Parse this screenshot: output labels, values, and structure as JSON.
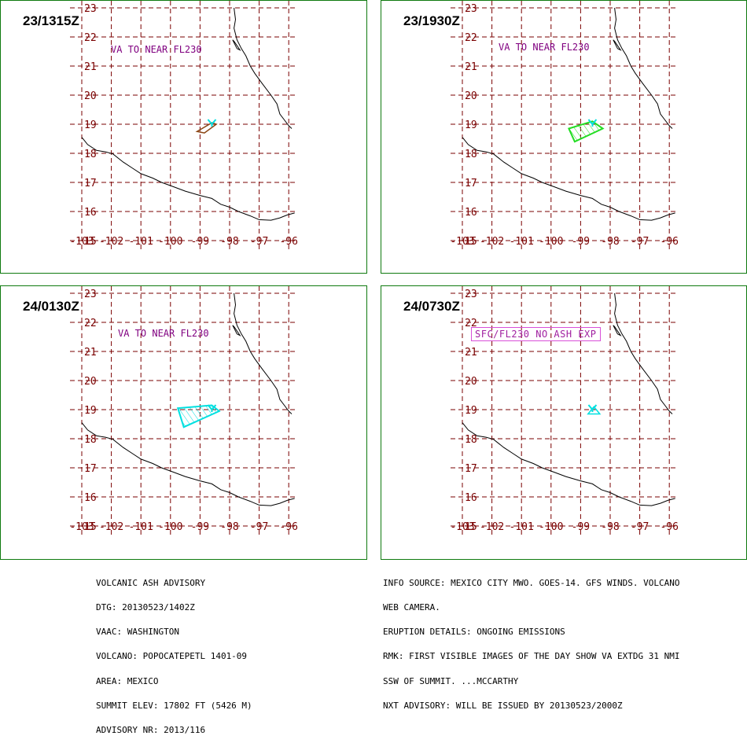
{
  "map": {
    "lon_ticks": [
      -103,
      -102,
      -101,
      -100,
      -99,
      -98,
      -97,
      -96
    ],
    "lon_tick_labels": [
      "-103",
      "-102",
      "-101",
      "-100",
      "-99",
      "-98",
      "-97",
      "-96"
    ],
    "lat_ticks": [
      23,
      22,
      21,
      20,
      19,
      18,
      17,
      16,
      15
    ],
    "lat_tick_labels": [
      "23",
      "22",
      "21",
      "20",
      "19",
      "18",
      "17",
      "16",
      "15"
    ],
    "grid_color": "#7a0000",
    "coast_color": "#000000",
    "volcano": {
      "lon": -98.6,
      "lat": 19.0,
      "color": "#00e0e0"
    }
  },
  "panels": [
    {
      "time": "23/1315Z",
      "note": "VA TO NEAR FL230",
      "note_style": "plain",
      "ash_color": "#8b4513",
      "ash_polygon": [
        [
          -98.6,
          19.05
        ],
        [
          -99.1,
          18.75
        ],
        [
          -98.85,
          18.7
        ],
        [
          -98.45,
          19.0
        ]
      ],
      "hatched": false
    },
    {
      "time": "23/1930Z",
      "note": "VA TO NEAR FL230",
      "note_style": "plain",
      "ash_color": "#22dd22",
      "ash_polygon": [
        [
          -98.6,
          19.1
        ],
        [
          -99.4,
          18.85
        ],
        [
          -99.2,
          18.4
        ],
        [
          -98.25,
          18.85
        ]
      ],
      "hatched": true
    },
    {
      "time": "24/0130Z",
      "note": "VA TO NEAR FL230",
      "note_style": "plain",
      "ash_color": "#00e0e0",
      "ash_polygon": [
        [
          -98.6,
          19.15
        ],
        [
          -99.75,
          19.05
        ],
        [
          -99.55,
          18.4
        ],
        [
          -98.35,
          18.95
        ]
      ],
      "hatched": true
    },
    {
      "time": "24/0730Z",
      "note": "SFC/FL230 NO ASH EXP",
      "note_style": "boxed",
      "ash_color": "#00e0e0",
      "ash_polygon": [
        [
          -98.55,
          19.1
        ],
        [
          -98.75,
          18.85
        ],
        [
          -98.35,
          18.85
        ]
      ],
      "hatched": false
    }
  ],
  "info_left": [
    "VOLCANIC ASH ADVISORY",
    "DTG: 20130523/1402Z",
    "VAAC: WASHINGTON",
    "VOLCANO: POPOCATEPETL 1401-09",
    "AREA: MEXICO",
    "SUMMIT ELEV: 17802 FT (5426 M)",
    "ADVISORY NR: 2013/116"
  ],
  "info_right": [
    "INFO SOURCE: MEXICO CITY MWO. GOES-14. GFS WINDS. VOLCANO",
    "WEB CAMERA.",
    "ERUPTION DETAILS: ONGOING EMISSIONS",
    "RMK: FIRST VISIBLE IMAGES OF THE DAY SHOW VA EXTDG 31 NMI",
    "SSW OF SUMMIT. ...MCCARTHY",
    "NXT ADVISORY: WILL BE ISSUED BY 20130523/2000Z"
  ]
}
